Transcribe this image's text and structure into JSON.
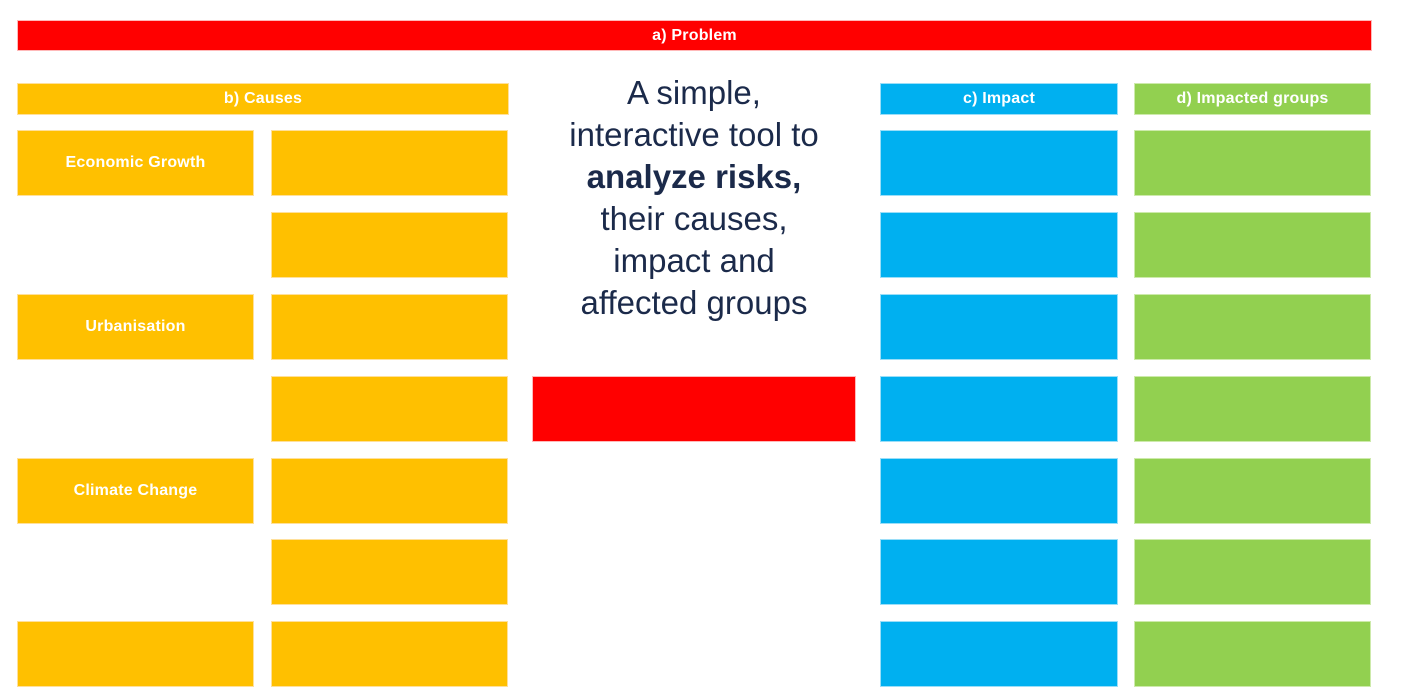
{
  "banner": {
    "label": "a) Problem"
  },
  "intro": {
    "lines": [
      {
        "text": "A simple,",
        "bold": false
      },
      {
        "text": "interactive tool to",
        "bold": false
      },
      {
        "text": "analyze risks,",
        "bold": true
      },
      {
        "text": "their causes,",
        "bold": false
      },
      {
        "text": "impact and",
        "bold": false
      },
      {
        "text": "affected groups",
        "bold": false
      }
    ]
  },
  "causes": {
    "header": "b) Causes",
    "labels": [
      "Economic Growth",
      "Urbanisation",
      "Climate Change"
    ]
  },
  "impact": {
    "header": "c) Impact"
  },
  "impacted_groups": {
    "header": "d) Impacted groups"
  },
  "colors": {
    "problem_red": "#FF0000",
    "causes_yellow": "#FFC000",
    "impact_blue": "#00B0F0",
    "groups_green": "#92D050",
    "intro_text_navy": "#1B2A4A",
    "label_text_white": "#FFFFFF"
  }
}
